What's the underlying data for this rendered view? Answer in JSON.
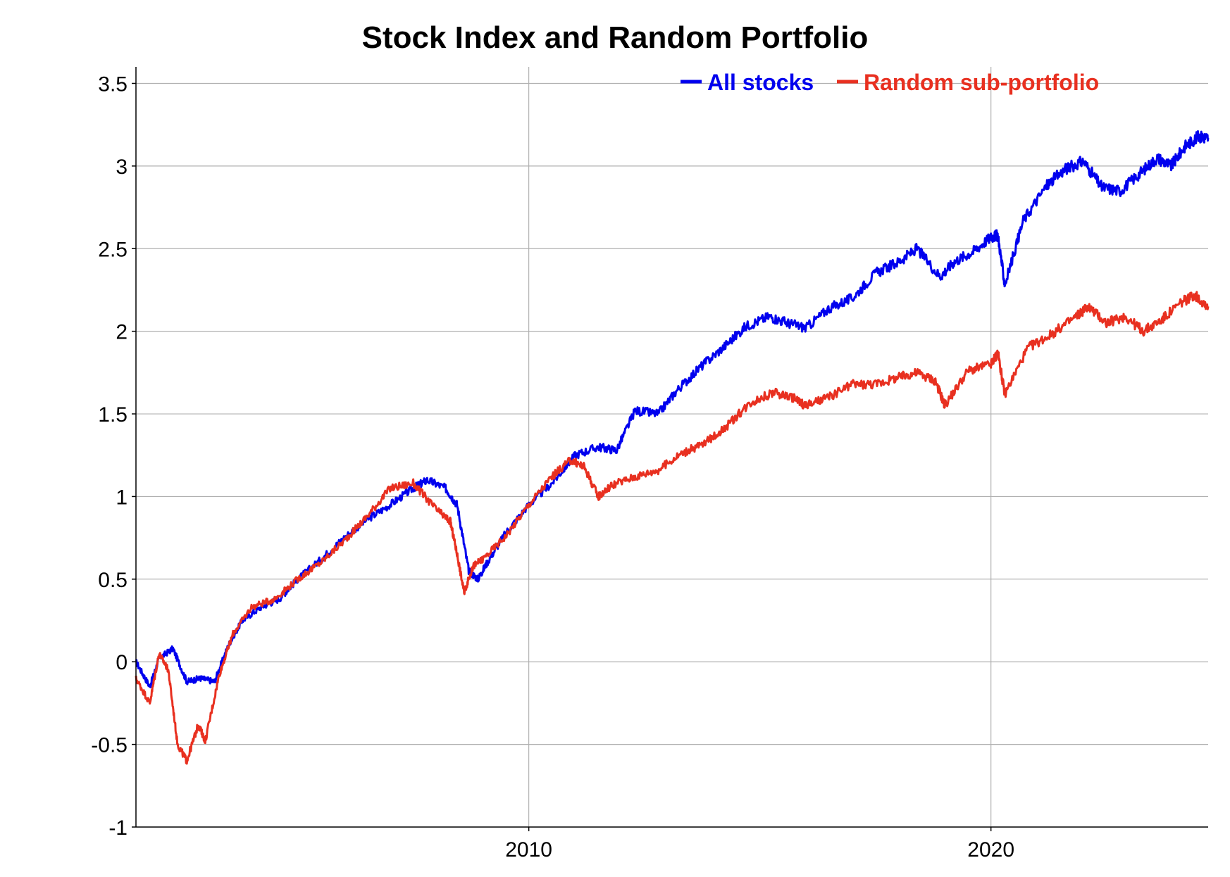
{
  "chart_data": {
    "type": "line",
    "title": "Stock Index and Random Portfolio",
    "xlabel": "",
    "ylabel": "",
    "x_range": [
      2001.5,
      2024.7
    ],
    "ylim": [
      -1,
      3.6
    ],
    "y_ticks": [
      -1,
      -0.5,
      0,
      0.5,
      1,
      1.5,
      2,
      2.5,
      3,
      3.5
    ],
    "y_tick_labels": [
      "-1",
      "-0.5",
      "0",
      "0.5",
      "1",
      "1.5",
      "2",
      "2.5",
      "3",
      "3.5"
    ],
    "x_ticks": [
      2010,
      2020
    ],
    "x_tick_labels": [
      "2010",
      "2020"
    ],
    "grid": true,
    "legend_position": "top-right",
    "series": [
      {
        "name": "All stocks",
        "color": "#0000ee",
        "x": [
          2001.5,
          2001.8,
          2002.0,
          2002.3,
          2002.6,
          2002.9,
          2003.2,
          2003.5,
          2003.8,
          2004.2,
          2004.6,
          2005.0,
          2005.5,
          2006.0,
          2006.5,
          2007.0,
          2007.5,
          2007.8,
          2008.2,
          2008.45,
          2008.7,
          2008.9,
          2009.1,
          2009.5,
          2010.0,
          2010.5,
          2011.0,
          2011.5,
          2011.9,
          2012.3,
          2012.8,
          2013.2,
          2013.7,
          2014.2,
          2014.7,
          2015.2,
          2015.6,
          2016.0,
          2016.5,
          2017.0,
          2017.5,
          2018.0,
          2018.4,
          2018.9,
          2019.2,
          2019.6,
          2020.0,
          2020.15,
          2020.3,
          2020.7,
          2021.2,
          2021.6,
          2022.0,
          2022.4,
          2022.8,
          2023.2,
          2023.6,
          2023.9,
          2024.2,
          2024.5,
          2024.7
        ],
        "y": [
          0.0,
          -0.15,
          0.02,
          0.08,
          -0.12,
          -0.1,
          -0.12,
          0.1,
          0.25,
          0.33,
          0.38,
          0.5,
          0.62,
          0.75,
          0.86,
          0.95,
          1.05,
          1.1,
          1.05,
          0.95,
          0.55,
          0.5,
          0.6,
          0.78,
          0.95,
          1.08,
          1.25,
          1.3,
          1.28,
          1.52,
          1.5,
          1.64,
          1.78,
          1.9,
          2.03,
          2.09,
          2.05,
          2.02,
          2.14,
          2.2,
          2.35,
          2.42,
          2.5,
          2.33,
          2.42,
          2.48,
          2.57,
          2.58,
          2.28,
          2.67,
          2.88,
          2.98,
          3.03,
          2.87,
          2.85,
          2.95,
          3.05,
          3.0,
          3.12,
          3.18,
          3.17
        ]
      },
      {
        "name": "Random sub-portfolio",
        "color": "#e83020",
        "x": [
          2001.5,
          2001.8,
          2002.0,
          2002.2,
          2002.4,
          2002.6,
          2002.85,
          2003.0,
          2003.3,
          2003.6,
          2004.0,
          2004.5,
          2005.0,
          2005.5,
          2006.0,
          2006.5,
          2007.0,
          2007.5,
          2008.0,
          2008.3,
          2008.45,
          2008.6,
          2008.8,
          2009.0,
          2009.5,
          2010.0,
          2010.5,
          2010.9,
          2011.2,
          2011.5,
          2011.8,
          2012.3,
          2012.8,
          2013.3,
          2013.8,
          2014.3,
          2014.8,
          2015.3,
          2015.7,
          2016.0,
          2016.5,
          2017.0,
          2017.5,
          2018.0,
          2018.4,
          2018.8,
          2019.0,
          2019.5,
          2020.0,
          2020.15,
          2020.3,
          2020.8,
          2021.3,
          2021.8,
          2022.1,
          2022.5,
          2022.9,
          2023.3,
          2023.7,
          2024.1,
          2024.4,
          2024.7
        ],
        "y": [
          -0.1,
          -0.25,
          0.05,
          -0.05,
          -0.5,
          -0.6,
          -0.38,
          -0.48,
          -0.08,
          0.17,
          0.33,
          0.38,
          0.5,
          0.6,
          0.73,
          0.88,
          1.05,
          1.08,
          0.92,
          0.85,
          0.65,
          0.42,
          0.58,
          0.62,
          0.76,
          0.95,
          1.12,
          1.22,
          1.18,
          1.0,
          1.07,
          1.12,
          1.16,
          1.26,
          1.32,
          1.43,
          1.57,
          1.63,
          1.6,
          1.55,
          1.6,
          1.68,
          1.68,
          1.72,
          1.75,
          1.7,
          1.55,
          1.76,
          1.8,
          1.87,
          1.62,
          1.9,
          1.98,
          2.08,
          2.15,
          2.05,
          2.09,
          2.0,
          2.07,
          2.17,
          2.22,
          2.15
        ]
      }
    ]
  }
}
